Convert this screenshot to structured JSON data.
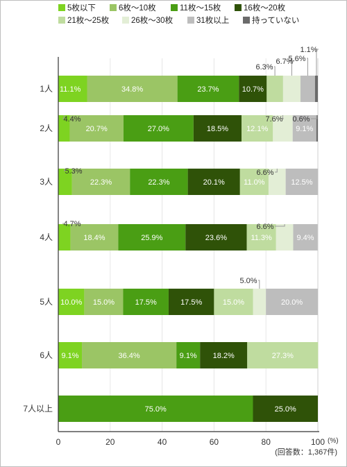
{
  "chart_data": {
    "type": "bar",
    "orientation": "horizontal",
    "stacked": true,
    "percent_stacked": true,
    "title": "",
    "xlabel": "",
    "ylabel": "",
    "xlim": [
      0,
      100
    ],
    "x_ticks": [
      "0",
      "20",
      "40",
      "60",
      "80",
      "100"
    ],
    "unit_label": "(%)",
    "note": "(回答数：1,367件)",
    "grid": true,
    "legend_position": "top",
    "categories": [
      "1人",
      "2人",
      "3人",
      "4人",
      "5人",
      "6人",
      "7人以上"
    ],
    "series": [
      {
        "name": "5枚以下",
        "color": "#7ed321",
        "label_color": "#ffffff",
        "values": [
          11.1,
          4.4,
          5.3,
          4.7,
          10.0,
          9.1,
          0
        ]
      },
      {
        "name": "6枚～10枚",
        "color": "#9bc565",
        "label_color": "#ffffff",
        "values": [
          34.8,
          20.7,
          22.3,
          18.4,
          15.0,
          36.4,
          0
        ]
      },
      {
        "name": "11枚～15枚",
        "color": "#4a9e14",
        "label_color": "#ffffff",
        "values": [
          23.7,
          27.0,
          22.3,
          25.9,
          17.5,
          9.1,
          75.0
        ]
      },
      {
        "name": "16枚～20枚",
        "color": "#2f5208",
        "label_color": "#ffffff",
        "values": [
          10.7,
          18.5,
          20.1,
          23.6,
          17.5,
          18.2,
          25.0
        ]
      },
      {
        "name": "21枚～25枚",
        "color": "#bfdc9f",
        "label_color": "#ffffff",
        "values": [
          6.3,
          12.1,
          11.0,
          11.3,
          15.0,
          27.3,
          0
        ]
      },
      {
        "name": "26枚～30枚",
        "color": "#e3eed6",
        "label_color": "#555555",
        "values": [
          6.7,
          7.6,
          6.6,
          6.6,
          5.0,
          0,
          0
        ]
      },
      {
        "name": "31枚以上",
        "color": "#bdbdbd",
        "label_color": "#ffffff",
        "values": [
          5.6,
          9.1,
          12.5,
          9.4,
          20.0,
          0,
          0
        ]
      },
      {
        "name": "持っていない",
        "color": "#6b6b6b",
        "label_color": "#ffffff",
        "values": [
          1.1,
          0.6,
          0,
          0,
          0,
          0,
          0
        ]
      }
    ],
    "data_labels": {
      "inside": [
        [
          "",
          "34.8%",
          "23.7%",
          "10.7%",
          "",
          "",
          "",
          ""
        ],
        [
          "",
          "20.7%",
          "27.0%",
          "18.5%",
          "12.1%",
          "",
          "9.1%",
          ""
        ],
        [
          "",
          "22.3%",
          "22.3%",
          "20.1%",
          "11.0%",
          "",
          "12.5%",
          ""
        ],
        [
          "",
          "18.4%",
          "25.9%",
          "23.6%",
          "11.3%",
          "",
          "9.4%",
          ""
        ],
        [
          "10.0%",
          "15.0%",
          "17.5%",
          "17.5%",
          "15.0%",
          "",
          "20.0%",
          ""
        ],
        [
          "9.1%",
          "36.4%",
          "9.1%",
          "18.2%",
          "27.3%",
          "",
          "",
          ""
        ],
        [
          "",
          "",
          "75.0%",
          "25.0%",
          "",
          "",
          "",
          ""
        ]
      ],
      "first_segment": [
        "11.1%",
        "4.4%",
        "5.3%",
        "4.7%",
        "",
        "",
        ""
      ],
      "callouts": [
        {
          "row": 0,
          "series": 4,
          "text": "6.3%"
        },
        {
          "row": 0,
          "series": 5,
          "text": "6.7%"
        },
        {
          "row": 0,
          "series": 6,
          "text": "5.6%"
        },
        {
          "row": 0,
          "series": 7,
          "text": "1.1%"
        },
        {
          "row": 1,
          "series": 0,
          "text": "4.4%"
        },
        {
          "row": 1,
          "series": 5,
          "text": "7.6%"
        },
        {
          "row": 1,
          "series": 7,
          "text": "0.6%"
        },
        {
          "row": 2,
          "series": 0,
          "text": "5.3%"
        },
        {
          "row": 2,
          "series": 5,
          "text": "6.6%"
        },
        {
          "row": 3,
          "series": 0,
          "text": "4.7%"
        },
        {
          "row": 3,
          "series": 5,
          "text": "6.6%"
        },
        {
          "row": 4,
          "series": 5,
          "text": "5.0%"
        }
      ]
    }
  }
}
